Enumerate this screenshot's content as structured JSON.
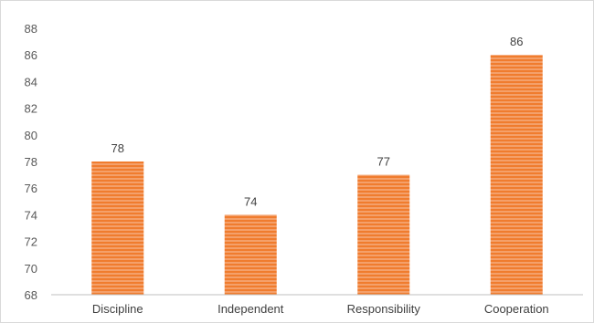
{
  "chart_data": {
    "type": "bar",
    "categories": [
      "Discipline",
      "Independent",
      "Responsibility",
      "Cooperation"
    ],
    "values": [
      78,
      74,
      77,
      86
    ],
    "data_labels": [
      "78",
      "74",
      "77",
      "86"
    ],
    "ylim": [
      68,
      88
    ],
    "y_ticks": [
      "68",
      "70",
      "72",
      "74",
      "76",
      "78",
      "80",
      "82",
      "84",
      "86",
      "88"
    ],
    "title": "",
    "xlabel": "",
    "ylabel": "",
    "grid": false,
    "legend": "none",
    "bar_color": "#f4a06a",
    "bar_stripe_color": "#f07c2e"
  }
}
